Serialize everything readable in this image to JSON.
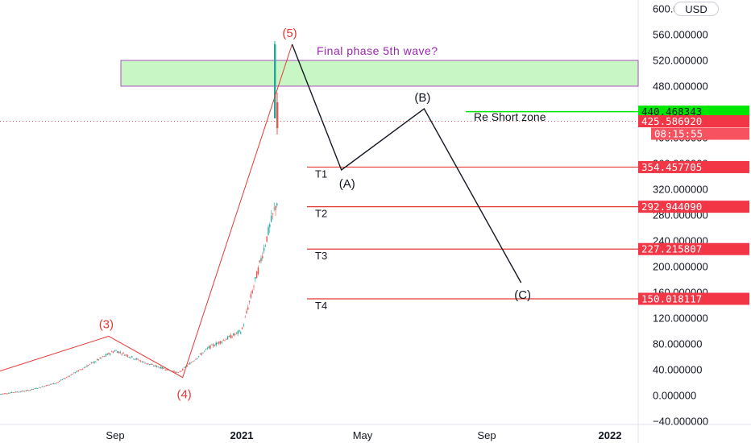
{
  "currency_button": "USD",
  "price_axis": {
    "ticks": [
      "600.000000",
      "560.000000",
      "520.000000",
      "480.000000",
      "440.000000",
      "400.000000",
      "360.000000",
      "320.000000",
      "280.000000",
      "240.000000",
      "200.000000",
      "160.000000",
      "120.000000",
      "80.000000",
      "40.000000",
      "0.000000",
      "−40.000000"
    ]
  },
  "time_axis": {
    "ticks": [
      "Sep",
      "2021",
      "May",
      "Sep",
      "2022"
    ]
  },
  "price_tags": {
    "resistance": "440.468343",
    "last_price": "425.586920",
    "countdown": "08:15:55",
    "t1": "354.457705",
    "t2": "292.944090",
    "t3": "227.215807",
    "t4": "150.018117"
  },
  "labels": {
    "wave3": "(3)",
    "wave4": "(4)",
    "wave5": "(5)",
    "waveA": "(A)",
    "waveB": "(B)",
    "waveC": "(C)",
    "t1": "T1",
    "t2": "T2",
    "t3": "T3",
    "t4": "T4",
    "zone_note": "Final phase 5th wave?",
    "short_zone": "Re Short zone"
  },
  "colors": {
    "up": "#26a69a",
    "down": "#ef5350",
    "target_line": "#e53935",
    "zone_fill": "#c8f7c5",
    "zone_border": "#9c27b0",
    "resistance": "#00e600",
    "tag_red": "#f23645",
    "tag_green": "#22ab94"
  },
  "chart_data": {
    "type": "line",
    "price_series": {
      "x": [
        "2020-05",
        "2020-06",
        "2020-07",
        "2020-08",
        "2020-09",
        "2020-10",
        "2020-11",
        "2020-12",
        "2021-01",
        "2021-02",
        "2021-03"
      ],
      "close": [
        2,
        8,
        20,
        45,
        70,
        50,
        35,
        75,
        100,
        280,
        425
      ]
    },
    "wave_points": [
      {
        "label": "(3)",
        "x": "2020-08-25",
        "y": 92
      },
      {
        "label": "(4)",
        "x": "2020-11-05",
        "y": 28
      },
      {
        "label": "(5)",
        "x": "2021-02-20",
        "y": 545
      }
    ],
    "projection": [
      {
        "label": "(5)",
        "x": "2021-02-20",
        "y": 545
      },
      {
        "label": "(A)",
        "x": "2021-04-10",
        "y": 350
      },
      {
        "label": "(B)",
        "x": "2021-07-01",
        "y": 445
      },
      {
        "label": "(C)",
        "x": "2021-10-05",
        "y": 175
      }
    ],
    "zone": {
      "y_from": 480,
      "y_to": 520
    },
    "targets": [
      354.457705,
      292.94409,
      227.215807,
      150.018117
    ],
    "resistance": 440.468343,
    "last_price": 425.58692,
    "ylim": [
      -45,
      610
    ]
  }
}
